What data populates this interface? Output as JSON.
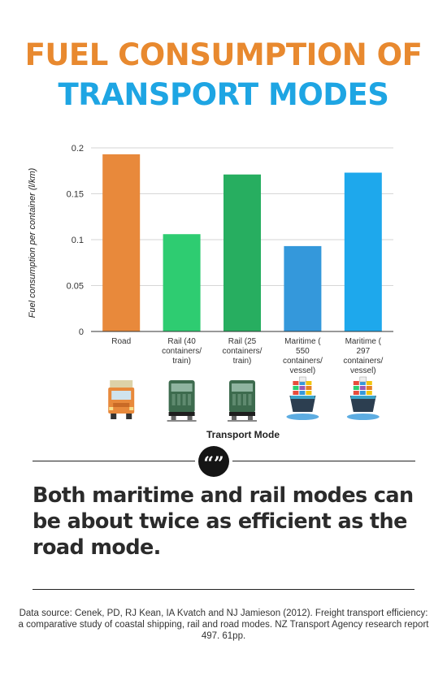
{
  "header": {
    "title_line1": "FUEL CONSUMPTION OF",
    "title_line2": "TRANSPORT MODES"
  },
  "colors": {
    "title_orange": "#e8892f",
    "title_blue": "#1ea5e3",
    "road": "#e8893b",
    "rail_40": "#2ecc71",
    "rail_25": "#27ae60",
    "maritime_550": "#3498db",
    "maritime_297": "#1ea8ec"
  },
  "chart_data": {
    "type": "bar",
    "categories": [
      [
        "Road"
      ],
      [
        "Rail (40",
        "containers/",
        "train)"
      ],
      [
        "Rail (25",
        "containers/",
        "train)"
      ],
      [
        "Maritime (",
        "550",
        "containers/",
        "vessel)"
      ],
      [
        "Maritime (",
        "297",
        "containers/",
        "vessel)"
      ]
    ],
    "values": [
      0.193,
      0.106,
      0.171,
      0.093,
      0.173
    ],
    "bar_colors": [
      "#e8893b",
      "#2ecc71",
      "#27ae60",
      "#3498db",
      "#1ea8ec"
    ],
    "icons": [
      "truck-icon",
      "train-icon",
      "train-icon",
      "ship-icon",
      "ship-icon"
    ],
    "xlabel": "Transport Mode",
    "ylabel": "Fuel consumption per container (l/km)",
    "ylim": [
      0,
      0.2
    ],
    "yticks": [
      "0",
      "0.05",
      "0.1",
      "0.15",
      "0.2"
    ],
    "grid": true
  },
  "quote": {
    "badge": "“”",
    "text": "Both maritime and rail modes can be about twice as efficient as the road mode."
  },
  "source": {
    "text": "Data source: Cenek, PD, RJ Kean, IA Kvatch and NJ Jamieson (2012). Freight transport efficiency: a comparative study of coastal shipping, rail and road modes. NZ Transport Agency research report 497. 61pp."
  }
}
